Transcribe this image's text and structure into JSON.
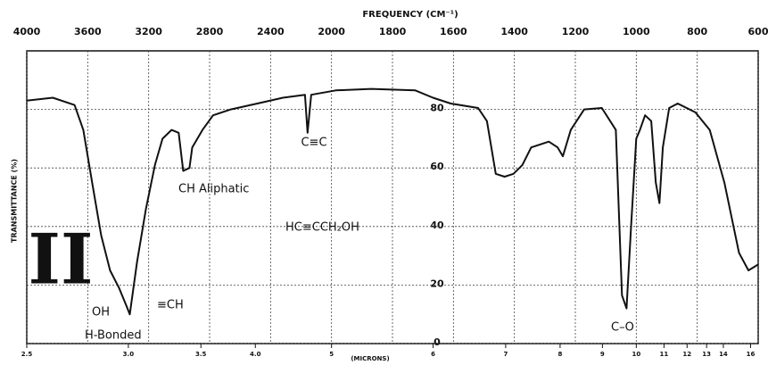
{
  "chart_data": {
    "type": "line",
    "title": "FREQUENCY (CM⁻¹)",
    "ylabel": "TRANSMITTANCE (%)",
    "x2label": "(MICRONS)",
    "x": [
      4000,
      3829,
      3686,
      3629,
      3571,
      3512,
      3453,
      3394,
      3347,
      3324,
      3276,
      3218,
      3159,
      3109,
      3050,
      3003,
      2973,
      2932,
      2914,
      2847,
      2777,
      2661,
      2487,
      2319,
      2174,
      2157,
      2133,
      1986,
      1870,
      1725,
      1667,
      1609,
      1519,
      1490,
      1461,
      1432,
      1403,
      1374,
      1345,
      1287,
      1258,
      1241,
      1215,
      1171,
      1113,
      1067,
      1047,
      1032,
      1017,
      1000,
      988,
      971,
      951,
      936,
      924,
      913,
      892,
      864,
      806,
      759,
      711,
      663,
      632,
      600
    ],
    "values": [
      83,
      84,
      81.5,
      73,
      55,
      37,
      25,
      19,
      13,
      10,
      28,
      46,
      61,
      70,
      73,
      72,
      59,
      60,
      67,
      73,
      78,
      80,
      82,
      84,
      85,
      72,
      85,
      86.5,
      87,
      86.5,
      84,
      82,
      80.5,
      76,
      58,
      57,
      58,
      61,
      67,
      69,
      67,
      64,
      73,
      80,
      80.5,
      73,
      16.5,
      12,
      40,
      70,
      73,
      78,
      76,
      55,
      48,
      67,
      80.5,
      82,
      79,
      73,
      55,
      31,
      25,
      27
    ],
    "color": "#111111",
    "xlim": [
      4000,
      600
    ],
    "xticks": [
      4000,
      3600,
      3200,
      2800,
      2400,
      2000,
      1800,
      1600,
      1400,
      1200,
      1000,
      800,
      600
    ],
    "x2ticks": [
      2.5,
      {
        "value": 3,
        "label": "3.0"
      },
      3.5,
      {
        "value": 4,
        "label": "4.0"
      },
      5,
      6,
      7,
      8,
      9,
      10,
      11,
      12,
      13,
      14,
      16
    ],
    "ylim": [
      0,
      100
    ],
    "yticks": [
      0,
      20,
      40,
      60,
      80
    ],
    "grid": true,
    "annotations": [
      "C≡C",
      "CH Aliphatic",
      "HC≡CCH₂OH",
      "OH",
      "≡CH",
      "H-Bonded",
      "C–O",
      "II"
    ]
  }
}
